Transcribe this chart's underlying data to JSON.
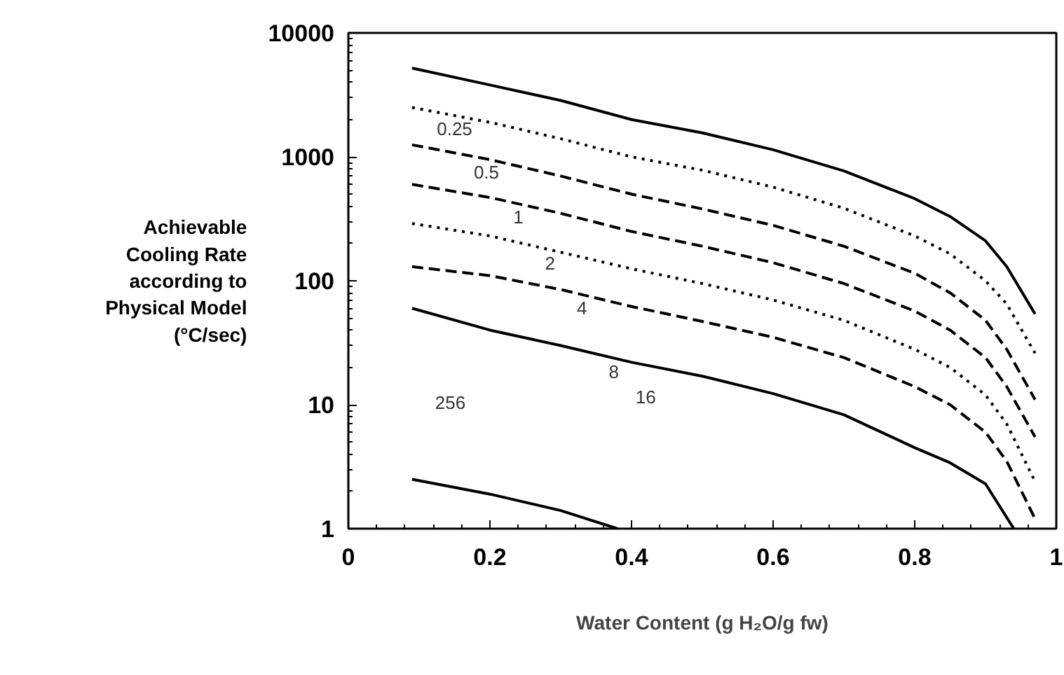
{
  "chart_data": {
    "type": "line",
    "xlabel": "Water Content (g H₂O/g fw)",
    "ylabel": "Achievable Cooling Rate according to Physical Model (°C/sec)",
    "log": "y",
    "grid": false,
    "marker": "none",
    "xlim": [
      0,
      1
    ],
    "ylim": [
      1,
      10000
    ],
    "xticks": [
      0,
      0.2,
      0.4,
      0.6,
      0.8,
      1
    ],
    "yticks": [
      1,
      10,
      100,
      1000,
      10000
    ],
    "x": [
      0.09,
      0.2,
      0.3,
      0.4,
      0.5,
      0.6,
      0.7,
      0.8,
      0.85,
      0.9,
      0.93,
      0.97
    ],
    "series": [
      {
        "color": "#000000",
        "line_style": "solid",
        "values": [
          5200,
          3800,
          2850,
          2000,
          1560,
          1140,
          770,
          460,
          330,
          210,
          130,
          54
        ]
      },
      {
        "color": "#000000",
        "line_style": "dotted",
        "values": [
          2500,
          1900,
          1400,
          1000,
          780,
          570,
          385,
          230,
          165,
          100,
          65,
          26
        ]
      },
      {
        "color": "#000000",
        "line_style": "dashed",
        "values": [
          1250,
          950,
          700,
          500,
          380,
          280,
          190,
          115,
          80,
          48,
          28,
          11
        ]
      },
      {
        "color": "#000000",
        "line_style": "dashed",
        "values": [
          600,
          470,
          350,
          250,
          190,
          140,
          95,
          57,
          40,
          24,
          14,
          5.5
        ]
      },
      {
        "color": "#000000",
        "line_style": "dotted",
        "values": [
          290,
          230,
          170,
          125,
          95,
          70,
          48,
          28,
          20,
          12,
          7,
          2.4
        ]
      },
      {
        "color": "#000000",
        "line_style": "dashed",
        "values": [
          130,
          110,
          85,
          62,
          47,
          35,
          24,
          14,
          10,
          6,
          3.5,
          1.2
        ]
      },
      {
        "color": "#000000",
        "line_style": "solid",
        "x": [
          0.09,
          0.2,
          0.3,
          0.4,
          0.5,
          0.6,
          0.7,
          0.8,
          0.85,
          0.9,
          0.94
        ],
        "values": [
          60,
          40,
          30,
          22,
          17,
          12.3,
          8.3,
          4.5,
          3.4,
          2.3,
          1
        ]
      },
      {
        "color": "#000000",
        "line_style": "solid",
        "x": [
          0.09,
          0.2,
          0.3,
          0.38
        ],
        "values": [
          2.5,
          1.9,
          1.4,
          1
        ]
      }
    ],
    "annotations": [
      "0.25",
      "0.5",
      "1",
      "2",
      "4",
      "8",
      "16",
      "256"
    ]
  }
}
